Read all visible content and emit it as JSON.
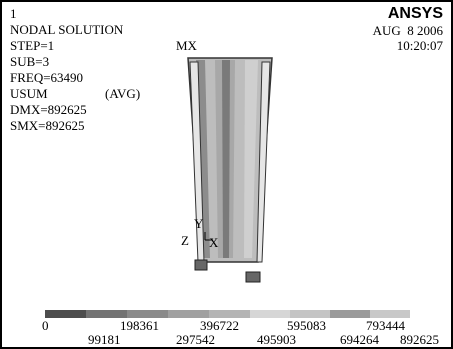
{
  "header": {
    "left": [
      "1",
      "NODAL SOLUTION",
      "STEP=1",
      "SUB=3",
      "FREQ=63490",
      "USUM",
      "(AVG)",
      "DMX=892625",
      "SMX=892625"
    ],
    "logo": "ANSYS",
    "date": "AUG  8 2006",
    "time": "10:20:07"
  },
  "model": {
    "max_label": "MX",
    "triad": {
      "y": "Y",
      "z": "Z",
      "x": "X"
    }
  },
  "legend": {
    "row1": [
      "0",
      "198361",
      "396722",
      "595083",
      "793444"
    ],
    "row2": [
      "99181",
      "297542",
      "495903",
      "694264",
      "892625"
    ]
  }
}
